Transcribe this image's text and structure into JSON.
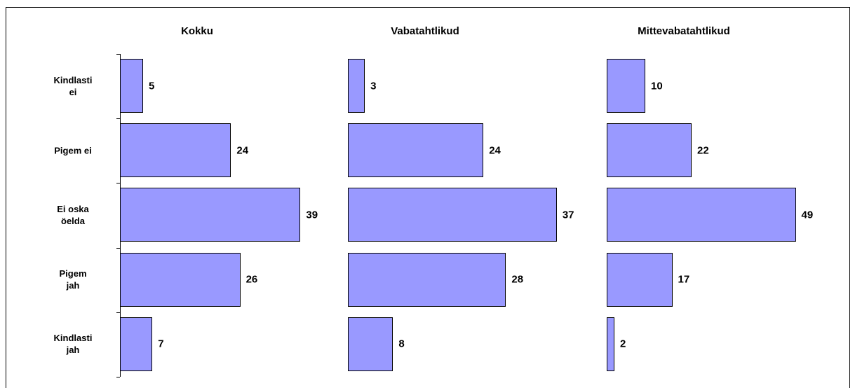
{
  "chart_data": [
    {
      "type": "bar",
      "title": "Kokku",
      "categories": [
        "Kindlasti\nei",
        "Pigem ei",
        "Ei oska\nöelda",
        "Pigem\njah",
        "Kindlasti\njah"
      ],
      "values": [
        5,
        24,
        39,
        26,
        7
      ],
      "color": "#9999ff",
      "xlim": [
        0,
        50
      ]
    },
    {
      "type": "bar",
      "title": "Vabatahtlikud",
      "values": [
        3,
        24,
        37,
        28,
        8
      ],
      "color": "#9999ff",
      "xlim": [
        0,
        40
      ]
    },
    {
      "type": "bar",
      "title": "Mittevabatahtlikud",
      "values": [
        10,
        22,
        49,
        17,
        2
      ],
      "color": "#9999ff",
      "xlim": [
        0,
        60
      ]
    }
  ]
}
